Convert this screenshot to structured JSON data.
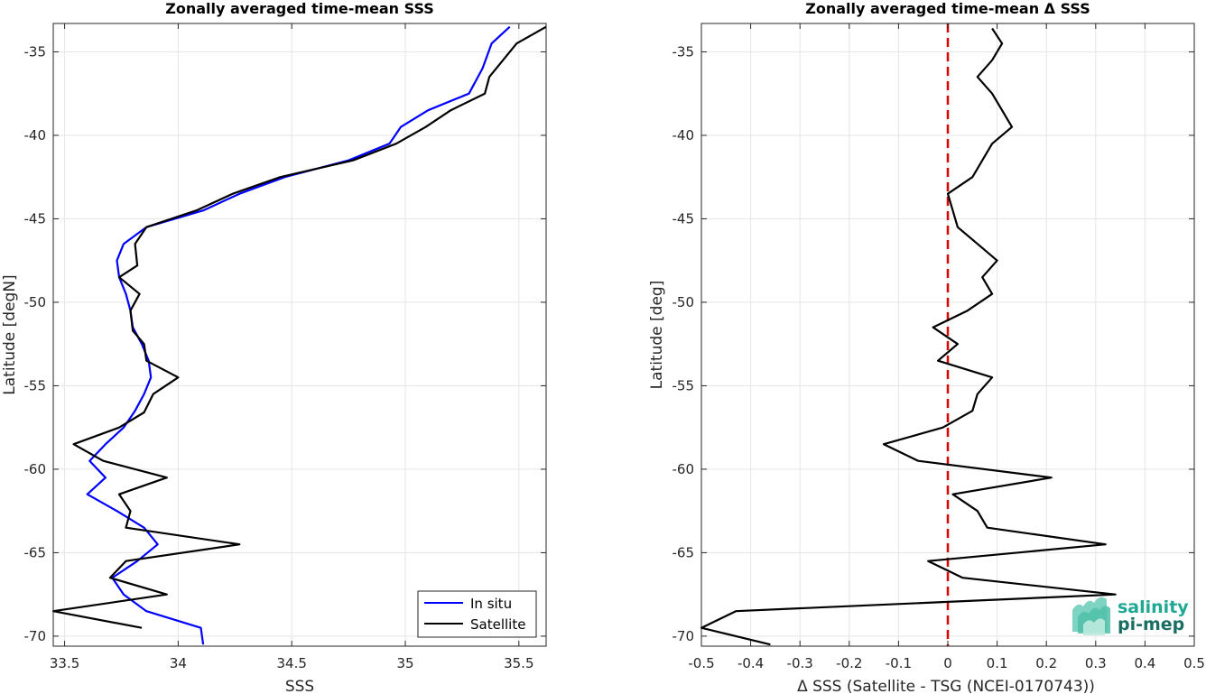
{
  "logo": {
    "line1": "salinity",
    "line2": "pi-mep",
    "color": "#1fa892"
  },
  "colors": {
    "insitu": "#0000ff",
    "satellite": "#000000",
    "zero_line": "#dd0000",
    "grid": "#e5e5e5"
  },
  "chart_data": [
    {
      "type": "line",
      "title": "Zonally averaged time-mean SSS",
      "xlabel": "SSS",
      "ylabel": "Latitude [degN]",
      "xlim": [
        33.45,
        35.62
      ],
      "ylim": [
        -70.6,
        -33.3
      ],
      "xticks": [
        33.5,
        34,
        34.5,
        35,
        35.5
      ],
      "xtick_labels": [
        "33.5",
        "34",
        "34.5",
        "35",
        "35.5"
      ],
      "yticks": [
        -35,
        -40,
        -45,
        -50,
        -55,
        -60,
        -65,
        -70
      ],
      "ytick_labels": [
        "-35",
        "-40",
        "-45",
        "-50",
        "-55",
        "-60",
        "-65",
        "-70"
      ],
      "grid": true,
      "legend": "bottom-right",
      "series": [
        {
          "name": "In situ",
          "color": "#0000ff",
          "points": [
            [
              35.46,
              -33.5
            ],
            [
              35.38,
              -34.5
            ],
            [
              35.34,
              -36.0
            ],
            [
              35.28,
              -37.5
            ],
            [
              35.1,
              -38.5
            ],
            [
              34.98,
              -39.5
            ],
            [
              34.93,
              -40.5
            ],
            [
              34.75,
              -41.5
            ],
            [
              34.47,
              -42.5
            ],
            [
              34.27,
              -43.5
            ],
            [
              34.11,
              -44.5
            ],
            [
              33.86,
              -45.5
            ],
            [
              33.76,
              -46.5
            ],
            [
              33.73,
              -47.5
            ],
            [
              33.74,
              -48.5
            ],
            [
              33.77,
              -49.5
            ],
            [
              33.79,
              -50.5
            ],
            [
              33.8,
              -51.5
            ],
            [
              33.84,
              -52.5
            ],
            [
              33.87,
              -53.5
            ],
            [
              33.88,
              -54.5
            ],
            [
              33.85,
              -55.5
            ],
            [
              33.81,
              -56.5
            ],
            [
              33.76,
              -57.5
            ],
            [
              33.68,
              -58.5
            ],
            [
              33.61,
              -59.5
            ],
            [
              33.68,
              -60.5
            ],
            [
              33.6,
              -61.5
            ],
            [
              33.73,
              -62.5
            ],
            [
              33.85,
              -63.5
            ],
            [
              33.91,
              -64.5
            ],
            [
              33.82,
              -65.5
            ],
            [
              33.71,
              -66.5
            ],
            [
              33.76,
              -67.5
            ],
            [
              33.86,
              -68.5
            ],
            [
              34.1,
              -69.5
            ],
            [
              34.11,
              -70.5
            ]
          ]
        },
        {
          "name": "Satellite",
          "color": "#000000",
          "points": [
            [
              35.62,
              -33.5
            ],
            [
              35.49,
              -34.5
            ],
            [
              35.37,
              -36.5
            ],
            [
              35.35,
              -37.5
            ],
            [
              35.2,
              -38.5
            ],
            [
              35.09,
              -39.5
            ],
            [
              34.96,
              -40.5
            ],
            [
              34.77,
              -41.5
            ],
            [
              34.45,
              -42.5
            ],
            [
              34.24,
              -43.5
            ],
            [
              34.08,
              -44.5
            ],
            [
              33.86,
              -45.5
            ],
            [
              33.81,
              -46.5
            ],
            [
              33.82,
              -47.8
            ],
            [
              33.74,
              -48.5
            ],
            [
              33.83,
              -49.5
            ],
            [
              33.79,
              -50.5
            ],
            [
              33.8,
              -51.7
            ],
            [
              33.85,
              -52.5
            ],
            [
              33.86,
              -53.5
            ],
            [
              34.0,
              -54.5
            ],
            [
              33.89,
              -55.5
            ],
            [
              33.85,
              -56.6
            ],
            [
              33.74,
              -57.5
            ],
            [
              33.54,
              -58.5
            ],
            [
              33.67,
              -59.5
            ],
            [
              33.95,
              -60.5
            ],
            [
              33.74,
              -61.5
            ],
            [
              33.79,
              -62.5
            ],
            [
              33.77,
              -63.5
            ],
            [
              34.27,
              -64.5
            ],
            [
              33.77,
              -65.5
            ],
            [
              33.7,
              -66.5
            ],
            [
              33.95,
              -67.5
            ],
            [
              33.45,
              -68.5
            ],
            [
              33.84,
              -69.5
            ]
          ]
        }
      ]
    },
    {
      "type": "line",
      "title": "Zonally averaged time-mean Δ SSS",
      "xlabel": "Δ SSS (Satellite - TSG (NCEI-0170743))",
      "ylabel": "Latitude [deg]",
      "xlim": [
        -0.5,
        0.5
      ],
      "ylim": [
        -70.6,
        -33.3
      ],
      "xticks": [
        -0.5,
        -0.4,
        -0.3,
        -0.2,
        -0.1,
        0,
        0.1,
        0.2,
        0.3,
        0.4,
        0.5
      ],
      "xtick_labels": [
        "-0.5",
        "-0.4",
        "-0.3",
        "-0.2",
        "-0.1",
        "0",
        "0.1",
        "0.2",
        "0.3",
        "0.4",
        "0.5"
      ],
      "yticks": [
        -35,
        -40,
        -45,
        -50,
        -55,
        -60,
        -65,
        -70
      ],
      "ytick_labels": [
        "-35",
        "-40",
        "-45",
        "-50",
        "-55",
        "-60",
        "-65",
        "-70"
      ],
      "grid": true,
      "reference_line_x": 0,
      "series": [
        {
          "color": "#000000",
          "points": [
            [
              0.09,
              -33.6
            ],
            [
              0.11,
              -34.5
            ],
            [
              0.09,
              -35.5
            ],
            [
              0.06,
              -36.5
            ],
            [
              0.09,
              -37.5
            ],
            [
              0.11,
              -38.5
            ],
            [
              0.13,
              -39.5
            ],
            [
              0.09,
              -40.5
            ],
            [
              0.07,
              -41.5
            ],
            [
              0.05,
              -42.5
            ],
            [
              0.0,
              -43.5
            ],
            [
              0.02,
              -45.5
            ],
            [
              0.06,
              -46.5
            ],
            [
              0.1,
              -47.5
            ],
            [
              0.07,
              -48.5
            ],
            [
              0.09,
              -49.5
            ],
            [
              0.04,
              -50.5
            ],
            [
              -0.03,
              -51.5
            ],
            [
              0.02,
              -52.5
            ],
            [
              -0.02,
              -53.5
            ],
            [
              0.09,
              -54.5
            ],
            [
              0.06,
              -55.5
            ],
            [
              0.05,
              -56.5
            ],
            [
              -0.01,
              -57.5
            ],
            [
              -0.13,
              -58.5
            ],
            [
              -0.06,
              -59.5
            ],
            [
              0.21,
              -60.5
            ],
            [
              0.01,
              -61.5
            ],
            [
              0.06,
              -62.5
            ],
            [
              0.08,
              -63.5
            ],
            [
              0.32,
              -64.5
            ],
            [
              -0.04,
              -65.5
            ],
            [
              0.03,
              -66.5
            ],
            [
              0.34,
              -67.5
            ],
            [
              -0.43,
              -68.5
            ],
            [
              -0.5,
              -69.5
            ],
            [
              -0.36,
              -70.5
            ]
          ]
        }
      ]
    }
  ]
}
